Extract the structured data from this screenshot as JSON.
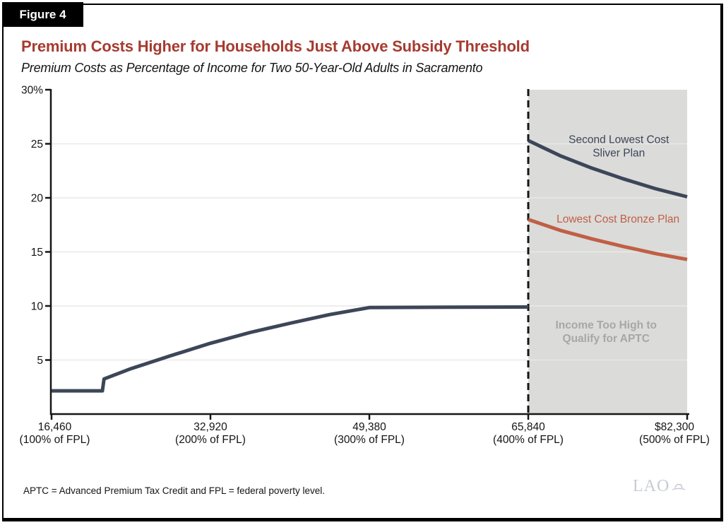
{
  "figure_label": "Figure 4",
  "header": {
    "title": "Premium Costs Higher for Households Just Above Subsidy Threshold",
    "subtitle": "Premium Costs as Percentage of Income for Two 50-Year-Old Adults in Sacramento"
  },
  "footnote": "APTC = Advanced Premium Tax Credit and FPL = federal poverty level.",
  "logo": {
    "text": "LAO",
    "icon": "lao-bear-over-book-icon"
  },
  "colors": {
    "title_red": "#a63b30",
    "navy": "#3d4659",
    "bronze": "#c05f45",
    "panel_gray": "#dbdbd9",
    "muted_gray": "#a7a7a7",
    "gridline": "#e9e9e7",
    "axis": "#161616",
    "text": "#141414",
    "logo_gray": "#c8ccd3",
    "badge_bg": "#000000",
    "badge_text": "#ffffff"
  },
  "chart_data": {
    "type": "line",
    "title": "Premium Costs Higher for Households Just Above Subsidy Threshold",
    "subtitle": "Premium Costs as Percentage of Income for Two 50-Year-Old Adults in Sacramento",
    "xlabel": "",
    "ylabel": "",
    "x_unit": "household income (percent of federal poverty level)",
    "y_unit": "premium cost as percent of income",
    "xlim_fpl": [
      100,
      500
    ],
    "ylim": [
      0,
      30
    ],
    "grid": true,
    "grid_values": [
      5,
      10,
      15,
      20,
      25
    ],
    "y_ticks": [
      {
        "value": 30,
        "label": "30%"
      },
      {
        "value": 25,
        "label": "25"
      },
      {
        "value": 20,
        "label": "20"
      },
      {
        "value": 15,
        "label": "15"
      },
      {
        "value": 10,
        "label": "10"
      },
      {
        "value": 5,
        "label": "5"
      }
    ],
    "x_ticks": [
      {
        "fpl": 100,
        "income_label": "16,460",
        "fpl_label": "(100% of FPL)",
        "label_center_fpl": 102
      },
      {
        "fpl": 200,
        "income_label": "32,920",
        "fpl_label": "(200% of FPL)"
      },
      {
        "fpl": 300,
        "income_label": "49,380",
        "fpl_label": "(300% of FPL)"
      },
      {
        "fpl": 400,
        "income_label": "65,840",
        "fpl_label": "(400% of FPL)"
      },
      {
        "fpl": 500,
        "income_label": "$82,300",
        "fpl_label": "(500% of FPL)",
        "label_center_fpl": 492
      }
    ],
    "threshold_line": {
      "fpl": 400,
      "style": "dashed"
    },
    "shaded_region": {
      "from_fpl": 400,
      "to_fpl": 500,
      "label_lines": [
        "Income Too High to",
        "Qualify for APTC"
      ],
      "label_pos": {
        "fpl": 449,
        "pct": 7.9
      }
    },
    "series": [
      {
        "id": "silver-subsidized",
        "name": "Second Lowest Cost Sliver Plan (subsidized, 100-400% FPL)",
        "color": "navy",
        "points": [
          [
            100,
            2.15
          ],
          [
            132,
            2.15
          ],
          [
            133,
            3.25
          ],
          [
            150,
            4.2
          ],
          [
            175,
            5.4
          ],
          [
            200,
            6.55
          ],
          [
            225,
            7.55
          ],
          [
            250,
            8.4
          ],
          [
            275,
            9.2
          ],
          [
            300,
            9.85
          ],
          [
            350,
            9.88
          ],
          [
            400,
            9.9
          ]
        ]
      },
      {
        "id": "silver-unsubsidized",
        "name": "Second Lowest Cost Sliver Plan (unsubsidized, 400-500% FPL)",
        "color": "navy",
        "label_lines": [
          "Second Lowest Cost",
          "Sliver Plan"
        ],
        "label_pos": {
          "fpl": 457,
          "pct": 25.05
        },
        "points": [
          [
            400,
            25.3
          ],
          [
            420,
            23.9
          ],
          [
            440,
            22.75
          ],
          [
            460,
            21.75
          ],
          [
            480,
            20.85
          ],
          [
            500,
            20.1
          ]
        ]
      },
      {
        "id": "bronze",
        "name": "Lowest Cost Bronze Plan",
        "color": "bronze",
        "label_lines": [
          "Lowest Cost Bronze Plan"
        ],
        "label_pos": {
          "fpl": 456.5,
          "pct": 17.7
        },
        "points": [
          [
            400,
            18.0
          ],
          [
            420,
            17.0
          ],
          [
            440,
            16.2
          ],
          [
            460,
            15.5
          ],
          [
            480,
            14.85
          ],
          [
            500,
            14.3
          ]
        ]
      }
    ]
  }
}
